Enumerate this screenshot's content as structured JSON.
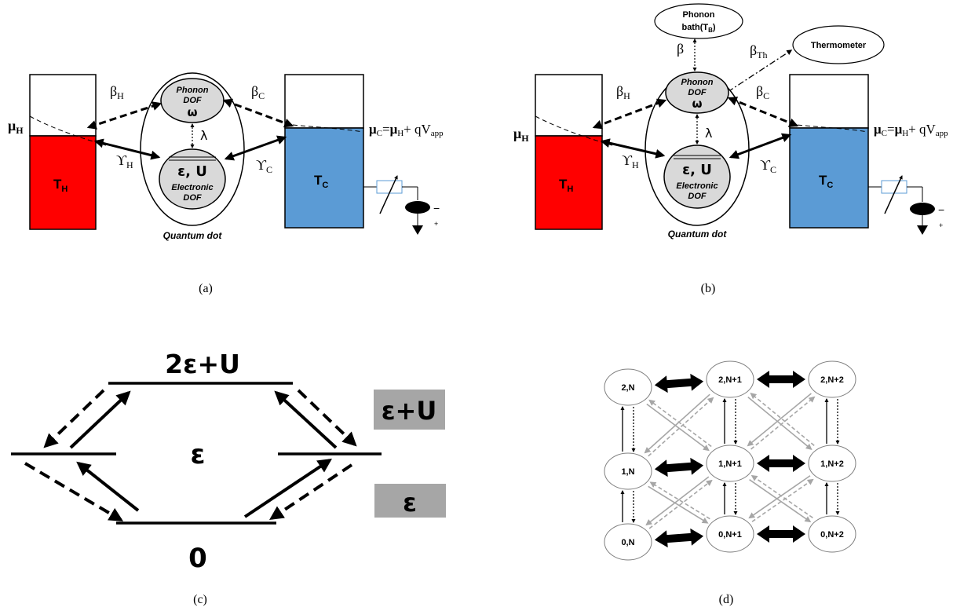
{
  "colors": {
    "hot_reservoir": "#ff0000",
    "cold_reservoir": "#5b9bd5",
    "dot_node": "#d9d9d9",
    "level_box": "#a6a6a6",
    "grey_arrow": "#a6a6a6"
  },
  "panel_a": {
    "caption": "(a)",
    "beta_h": "β",
    "beta_h_sub": "H",
    "beta_c": "β",
    "beta_c_sub": "C",
    "gamma_h": "ϒ",
    "gamma_h_sub": "H",
    "gamma_c": "ϒ",
    "gamma_c_sub": "C",
    "mu_h": "μ",
    "mu_h_sub": "H",
    "mu_c_eq": "μC=μH+ qVapp",
    "t_h": "T",
    "t_h_sub": "H",
    "t_c": "T",
    "t_c_sub": "C",
    "lambda": "λ",
    "phonon_l1": "Phonon",
    "phonon_l2": "DOF",
    "omega": "ω",
    "eps_u": "ε, U",
    "elec_l1": "Electronic",
    "elec_l2": "DOF",
    "qdot": "Quantum dot",
    "minus": "−",
    "plus": "+"
  },
  "panel_b": {
    "caption": "(b)",
    "bath_l1": "Phonon",
    "bath_l2": "bath(T",
    "bath_sub": "B",
    "bath_close": ")",
    "beta": "β",
    "beta_th": "β",
    "beta_th_sub": "Th",
    "thermometer": "Thermometer",
    "beta_h": "β",
    "beta_h_sub": "H",
    "beta_c": "β",
    "beta_c_sub": "C",
    "gamma_h": "ϒ",
    "gamma_h_sub": "H",
    "gamma_c": "ϒ",
    "gamma_c_sub": "C",
    "mu_h": "μ",
    "mu_h_sub": "H",
    "mu_c_eq": "μC=μH+ qVapp",
    "t_h": "T",
    "t_h_sub": "H",
    "t_c": "T",
    "t_c_sub": "C",
    "lambda": "λ",
    "phonon_l1": "Phonon",
    "phonon_l2": "DOF",
    "omega": "ω",
    "eps_u": "ε, U",
    "elec_l1": "Electronic",
    "elec_l2": "DOF",
    "qdot": "Quantum dot",
    "minus": "−",
    "plus": "+"
  },
  "panel_c": {
    "caption": "(c)",
    "top_level": "2ε+U",
    "mid_level": "ε",
    "bottom_level": "0",
    "box_upper": "ε+U",
    "box_lower": "ε"
  },
  "panel_d": {
    "caption": "(d)",
    "nodes": [
      "2,N",
      "2,N+1",
      "2,N+2",
      "1,N",
      "1,N+1",
      "1,N+2",
      "0,N",
      "0,N+1",
      "0,N+2"
    ]
  }
}
